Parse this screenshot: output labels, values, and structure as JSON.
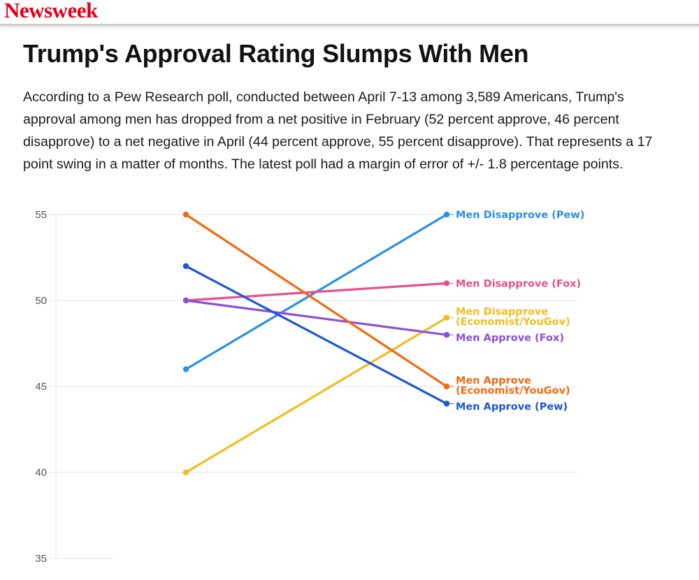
{
  "brand": {
    "name": "Newsweek"
  },
  "article": {
    "title": "Trump's Approval Rating Slumps With Men",
    "description_lines": [
      "According to a Pew Research poll, conducted between April 7-13 among 3,589 Americans, Trump's",
      "approval among men has dropped from a net positive in February (52 percent approve, 46 percent",
      "disapprove) to a net negative in April (44 percent approve, 55 percent disapprove). That represents a 17",
      "point swing in a matter of months. The latest poll had a margin of error of +/- 1.8 percentage points."
    ]
  },
  "chart_data": {
    "type": "line",
    "title": "",
    "xlabel": "",
    "ylabel": "",
    "ylim": [
      35,
      55
    ],
    "yticks": [
      55,
      50,
      45,
      40,
      35
    ],
    "grid": true,
    "legend": "direct labels at right end of lines",
    "series": [
      {
        "name": "Men Disapprove (Pew)",
        "label_lines": [
          "Men Disapprove (Pew)"
        ],
        "color": "#2e8fe6",
        "values": [
          46,
          55
        ]
      },
      {
        "name": "Men Disapprove (Fox)",
        "label_lines": [
          "Men Disapprove (Fox)"
        ],
        "color": "#e8508c",
        "values": [
          50,
          51
        ]
      },
      {
        "name": "Men Disapprove (Economist/YouGov)",
        "label_lines": [
          "Men Disapprove",
          "(Economist/YouGov)"
        ],
        "color": "#f2bd1d",
        "values": [
          40,
          49
        ]
      },
      {
        "name": "Men Approve (Fox)",
        "label_lines": [
          "Men Approve (Fox)"
        ],
        "color": "#8b50d8",
        "values": [
          50,
          48
        ]
      },
      {
        "name": "Men Approve (Economist/YouGov)",
        "label_lines": [
          "Men Approve",
          "(Economist/YouGov)"
        ],
        "color": "#f2690f",
        "values": [
          55,
          45
        ]
      },
      {
        "name": "Men Approve (Pew)",
        "label_lines": [
          "Men Approve (Pew)"
        ],
        "color": "#1a56d6",
        "values": [
          52,
          44
        ]
      }
    ]
  }
}
